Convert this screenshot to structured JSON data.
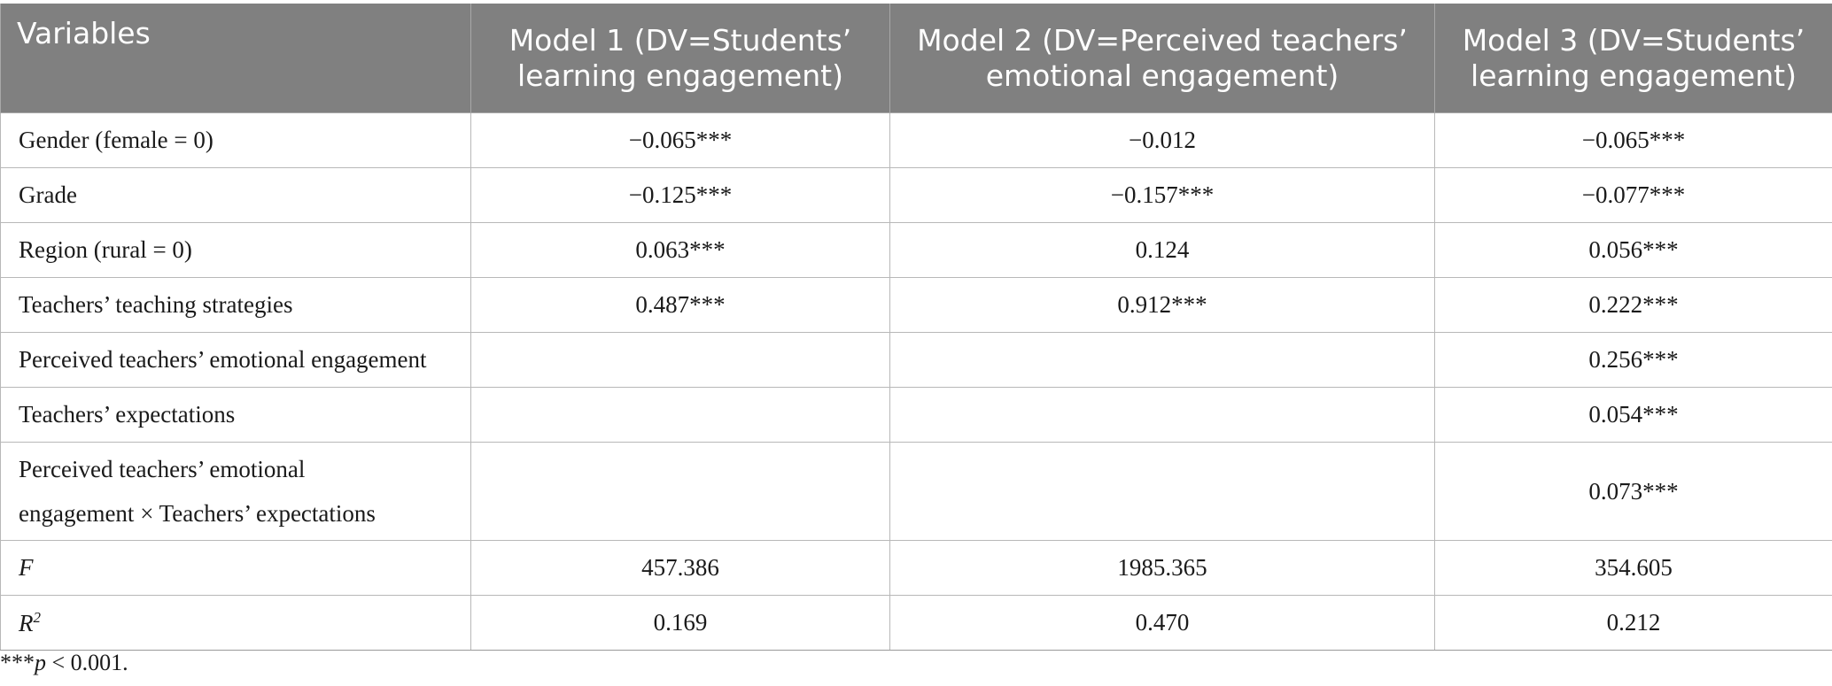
{
  "table": {
    "headers": [
      {
        "line1": "Variables",
        "line2": ""
      },
      {
        "line1": "Model 1 (DV=Students’",
        "line2": "learning engagement)"
      },
      {
        "line1": "Model 2 (DV=Perceived teachers’",
        "line2": "emotional engagement)"
      },
      {
        "line1": "Model 3 (DV=Students’",
        "line2": "learning engagement)"
      }
    ],
    "rows": [
      {
        "label": "Gender (female = 0)",
        "m1": "−0.065***",
        "m2": "−0.012",
        "m3": "−0.065***"
      },
      {
        "label": "Grade",
        "m1": "−0.125***",
        "m2": "−0.157***",
        "m3": "−0.077***"
      },
      {
        "label": "Region (rural = 0)",
        "m1": "0.063***",
        "m2": "0.124",
        "m3": "0.056***"
      },
      {
        "label": "Teachers’ teaching strategies",
        "m1": "0.487***",
        "m2": "0.912***",
        "m3": "0.222***"
      },
      {
        "label": "Perceived teachers’ emotional engagement",
        "m1": "",
        "m2": "",
        "m3": "0.256***"
      },
      {
        "label": "Teachers’ expectations",
        "m1": "",
        "m2": "",
        "m3": "0.054***"
      },
      {
        "label_line1": "Perceived teachers’ emotional",
        "label_line2": "engagement × Teachers’ expectations",
        "m1": "",
        "m2": "",
        "m3": "0.073***"
      }
    ],
    "f_row": {
      "label": "F",
      "m1": "457.386",
      "m2": "1985.365",
      "m3": "354.605"
    },
    "r2_row": {
      "label": "R",
      "sup": "2",
      "m1": "0.169",
      "m2": "0.470",
      "m3": "0.212"
    }
  },
  "footnote": {
    "stars": "***",
    "p": "p",
    "rest": " < 0.001."
  }
}
